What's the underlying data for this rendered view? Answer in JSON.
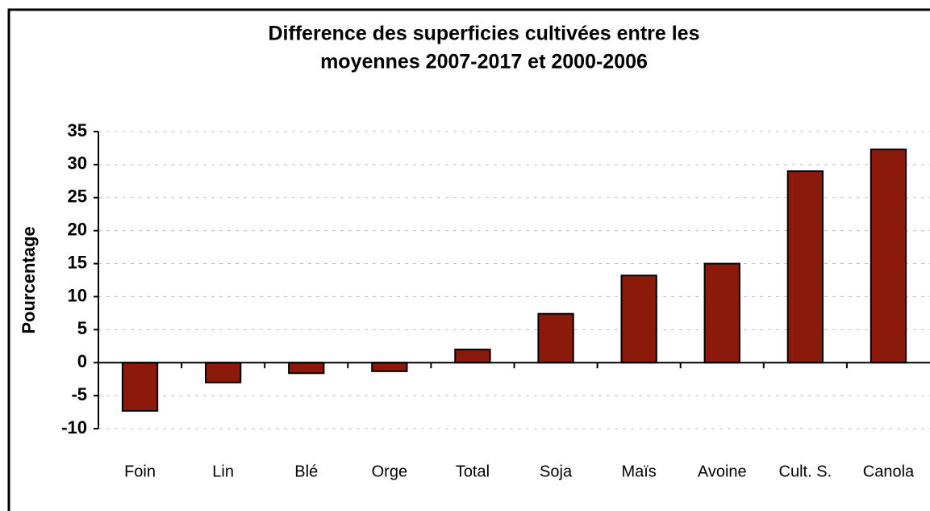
{
  "chart_data": {
    "type": "bar",
    "title": [
      "Difference des superficies cultivées entre les",
      "moyennes 2007-2017 et 2000-2006"
    ],
    "y_label": "Pourcentage",
    "categories": [
      "Foin",
      "Lin",
      "Blé",
      "Orge",
      "Total",
      "Soja",
      "Maïs",
      "Avoine",
      "Cult. S.",
      "Canola"
    ],
    "values": [
      -7.3,
      -3.0,
      -1.6,
      -1.3,
      2.0,
      7.4,
      13.2,
      15.0,
      29.0,
      32.3
    ],
    "color": "#8b1a0a",
    "ylim": [
      -10,
      35
    ],
    "yticks": [
      -10,
      -5,
      0,
      5,
      10,
      15,
      20,
      25,
      30,
      35
    ],
    "grid": true
  }
}
